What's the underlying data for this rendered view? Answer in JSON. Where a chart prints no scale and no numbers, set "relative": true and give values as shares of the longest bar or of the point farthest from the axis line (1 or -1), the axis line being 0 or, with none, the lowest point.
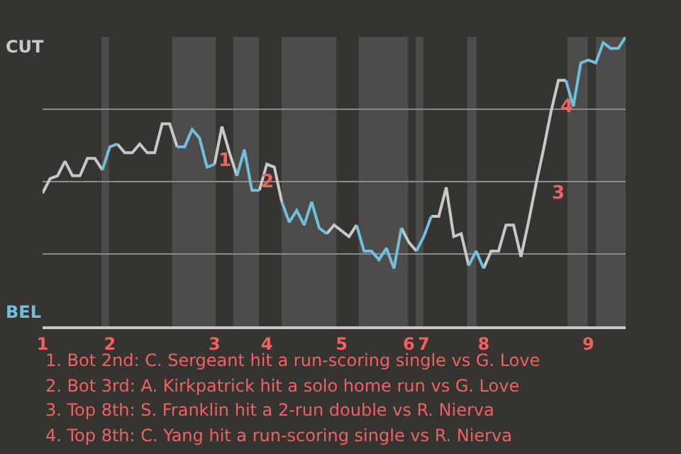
{
  "chart_data": {
    "type": "line",
    "categories": [
      "1",
      null,
      null,
      null,
      null,
      null,
      null,
      null,
      null,
      "2",
      null,
      null,
      null,
      null,
      null,
      null,
      null,
      null,
      null,
      null,
      null,
      null,
      null,
      "3",
      null,
      null,
      null,
      null,
      null,
      null,
      "4",
      null,
      null,
      null,
      null,
      null,
      null,
      null,
      null,
      null,
      "5",
      null,
      null,
      null,
      null,
      null,
      null,
      null,
      null,
      "6",
      null,
      "7",
      null,
      null,
      null,
      null,
      null,
      null,
      null,
      "8",
      null,
      null,
      null,
      null,
      null,
      null,
      null,
      null,
      null,
      null,
      null,
      null,
      null,
      "9",
      null,
      null,
      null,
      null,
      null
    ],
    "series": [
      {
        "color": "#c8c8c8",
        "values": [
          0.46,
          0.51,
          0.52,
          0.57,
          0.52,
          0.52,
          0.58,
          0.58,
          0.54,
          null,
          0.63,
          0.6,
          0.6,
          0.63,
          0.6,
          0.6,
          0.7,
          0.7,
          0.62,
          null,
          null,
          null,
          null,
          0.56,
          0.69,
          0.6,
          0.52,
          null,
          null,
          0.47,
          0.56,
          0.55,
          0.43,
          null,
          null,
          null,
          null,
          null,
          0.32,
          0.35,
          0.33,
          0.31,
          0.35,
          null,
          null,
          null,
          null,
          null,
          0.34,
          0.29,
          0.26,
          null,
          0.38,
          0.38,
          0.48,
          0.31,
          0.32,
          0.21,
          null,
          0.2,
          0.26,
          0.26,
          0.35,
          0.35,
          0.24,
          0.36,
          0.49,
          0.61,
          0.74,
          0.85,
          0.85,
          null,
          null,
          null,
          null,
          null,
          null,
          null,
          null
        ]
      },
      {
        "color": "#6ec0dc",
        "values": [
          null,
          null,
          null,
          null,
          null,
          null,
          null,
          null,
          0.54,
          0.62,
          0.63,
          null,
          null,
          null,
          null,
          null,
          null,
          null,
          0.62,
          0.62,
          0.68,
          0.65,
          0.55,
          0.56,
          null,
          null,
          0.52,
          0.61,
          0.47,
          0.47,
          null,
          null,
          0.43,
          0.36,
          0.4,
          0.35,
          0.43,
          0.34,
          0.32,
          null,
          null,
          null,
          0.35,
          0.26,
          0.26,
          0.23,
          0.27,
          0.2,
          0.34,
          null,
          0.26,
          0.31,
          0.38,
          null,
          null,
          null,
          null,
          0.21,
          0.26,
          0.2,
          null,
          null,
          null,
          null,
          null,
          null,
          null,
          null,
          null,
          null,
          0.85,
          0.76,
          0.91,
          0.92,
          0.91,
          0.98,
          0.96,
          0.96,
          1
        ]
      }
    ],
    "relative": true,
    "grid": "y",
    "annotations": [
      "CUT",
      "BEL",
      "1",
      "2",
      "3",
      "4",
      "1. Bot 2nd: C. Sergeant hit a run-scoring single vs G. Love",
      "2. Bot 3rd: A. Kirkpatrick hit a solo home run vs G. Love",
      "3. Top 8th: S. Franklin hit a 2-run double vs R. Nierva",
      "4. Top 8th: C. Yang hit a run-scoring single vs R. Nierva"
    ],
    "marker": "none",
    "line_style": "solid"
  }
}
